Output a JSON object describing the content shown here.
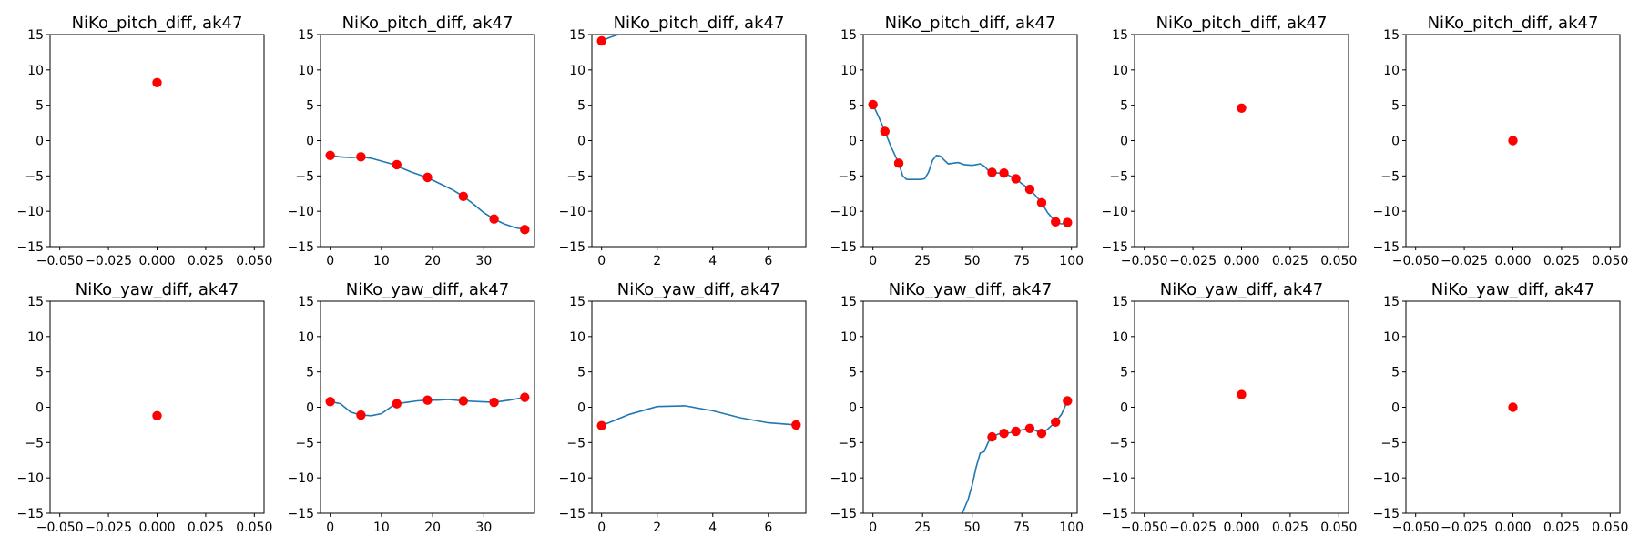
{
  "chart_data": [
    {
      "type": "scatter",
      "title": "NiKo_pitch_diff, ak47",
      "xticks": [
        "−0.050",
        "−0.025",
        "0.000",
        "0.025",
        "0.050"
      ],
      "yticks": [
        "15",
        "10",
        "5",
        "0",
        "−5",
        "−10",
        "−15"
      ],
      "xlim": [
        -0.055,
        0.055
      ],
      "ylim": [
        -15,
        15
      ],
      "points": [
        {
          "x": 0,
          "y": 8.2
        }
      ],
      "curve": []
    },
    {
      "type": "line",
      "title": "NiKo_pitch_diff, ak47",
      "xticks": [
        "0",
        "10",
        "20",
        "30"
      ],
      "yticks": [
        "15",
        "10",
        "5",
        "0",
        "−5",
        "−10",
        "−15"
      ],
      "xlim": [
        -1.9,
        39.9
      ],
      "ylim": [
        -15,
        15
      ],
      "points": [
        {
          "x": 0,
          "y": -2.1
        },
        {
          "x": 6,
          "y": -2.3
        },
        {
          "x": 13,
          "y": -3.4
        },
        {
          "x": 19,
          "y": -5.2
        },
        {
          "x": 26,
          "y": -7.9
        },
        {
          "x": 32,
          "y": -11.1
        },
        {
          "x": 38,
          "y": -12.6
        }
      ],
      "curve": [
        [
          0,
          -2.1
        ],
        [
          2,
          -2.3
        ],
        [
          4,
          -2.4
        ],
        [
          6,
          -2.3
        ],
        [
          8,
          -2.5
        ],
        [
          10,
          -2.9
        ],
        [
          12,
          -3.3
        ],
        [
          14,
          -3.9
        ],
        [
          16,
          -4.5
        ],
        [
          18,
          -5.0
        ],
        [
          20,
          -5.6
        ],
        [
          22,
          -6.3
        ],
        [
          24,
          -7.0
        ],
        [
          26,
          -7.9
        ],
        [
          28,
          -9.0
        ],
        [
          30,
          -10.2
        ],
        [
          32,
          -11.1
        ],
        [
          34,
          -11.8
        ],
        [
          36,
          -12.3
        ],
        [
          38,
          -12.6
        ]
      ]
    },
    {
      "type": "line",
      "title": "NiKo_pitch_diff, ak47",
      "xticks": [
        "0",
        "2",
        "4",
        "6"
      ],
      "yticks": [
        "15",
        "10",
        "5",
        "0",
        "−5",
        "−10",
        "−15"
      ],
      "xlim": [
        -0.35,
        7.35
      ],
      "ylim": [
        -15,
        15
      ],
      "points": [
        {
          "x": 0,
          "y": 14.1
        }
      ],
      "curve": [
        [
          0,
          14.1
        ],
        [
          0.3,
          14.6
        ],
        [
          0.6,
          15.0
        ],
        [
          0.9,
          15.4
        ],
        [
          1.2,
          15.8
        ]
      ]
    },
    {
      "type": "line",
      "title": "NiKo_pitch_diff, ak47",
      "xticks": [
        "0",
        "25",
        "50",
        "75",
        "100"
      ],
      "yticks": [
        "15",
        "10",
        "5",
        "0",
        "−5",
        "−10",
        "−15"
      ],
      "xlim": [
        -4.9,
        102.9
      ],
      "ylim": [
        -15,
        15
      ],
      "points": [
        {
          "x": 0,
          "y": 5.1
        },
        {
          "x": 6,
          "y": 1.3
        },
        {
          "x": 13,
          "y": -3.2
        },
        {
          "x": 60,
          "y": -4.5
        },
        {
          "x": 66,
          "y": -4.6
        },
        {
          "x": 72,
          "y": -5.4
        },
        {
          "x": 79,
          "y": -6.9
        },
        {
          "x": 85,
          "y": -8.8
        },
        {
          "x": 92,
          "y": -11.5
        },
        {
          "x": 98,
          "y": -11.6
        }
      ],
      "curve": [
        [
          0,
          5.1
        ],
        [
          3,
          3.3
        ],
        [
          6,
          1.3
        ],
        [
          9,
          -0.8
        ],
        [
          13,
          -3.2
        ],
        [
          15,
          -5.0
        ],
        [
          17,
          -5.5
        ],
        [
          20,
          -5.5
        ],
        [
          24,
          -5.5
        ],
        [
          26,
          -5.4
        ],
        [
          28,
          -4.5
        ],
        [
          30,
          -2.8
        ],
        [
          32,
          -2.1
        ],
        [
          34,
          -2.2
        ],
        [
          36,
          -2.8
        ],
        [
          38,
          -3.3
        ],
        [
          40,
          -3.2
        ],
        [
          43,
          -3.1
        ],
        [
          46,
          -3.4
        ],
        [
          50,
          -3.5
        ],
        [
          54,
          -3.3
        ],
        [
          56,
          -3.6
        ],
        [
          58,
          -4.2
        ],
        [
          60,
          -4.5
        ],
        [
          63,
          -4.6
        ],
        [
          66,
          -4.6
        ],
        [
          69,
          -5.0
        ],
        [
          72,
          -5.4
        ],
        [
          75,
          -6.1
        ],
        [
          79,
          -6.9
        ],
        [
          82,
          -7.8
        ],
        [
          85,
          -8.8
        ],
        [
          88,
          -10.2
        ],
        [
          92,
          -11.5
        ],
        [
          95,
          -11.8
        ],
        [
          98,
          -11.6
        ]
      ]
    },
    {
      "type": "scatter",
      "title": "NiKo_pitch_diff, ak47",
      "xticks": [
        "−0.050",
        "−0.025",
        "0.000",
        "0.025",
        "0.050"
      ],
      "yticks": [
        "15",
        "10",
        "5",
        "0",
        "−5",
        "−10",
        "−15"
      ],
      "xlim": [
        -0.055,
        0.055
      ],
      "ylim": [
        -15,
        15
      ],
      "points": [
        {
          "x": 0,
          "y": 4.6
        }
      ],
      "curve": []
    },
    {
      "type": "scatter",
      "title": "NiKo_pitch_diff, ak47",
      "xticks": [
        "−0.050",
        "−0.025",
        "0.000",
        "0.025",
        "0.050"
      ],
      "yticks": [
        "15",
        "10",
        "5",
        "0",
        "−5",
        "−10",
        "−15"
      ],
      "xlim": [
        -0.055,
        0.055
      ],
      "ylim": [
        -15,
        15
      ],
      "points": [
        {
          "x": 0,
          "y": 0.0
        }
      ],
      "curve": []
    },
    {
      "type": "scatter",
      "title": "NiKo_yaw_diff, ak47",
      "xticks": [
        "−0.050",
        "−0.025",
        "0.000",
        "0.025",
        "0.050"
      ],
      "yticks": [
        "15",
        "10",
        "5",
        "0",
        "−5",
        "−10",
        "−15"
      ],
      "xlim": [
        -0.055,
        0.055
      ],
      "ylim": [
        -15,
        15
      ],
      "points": [
        {
          "x": 0,
          "y": -1.2
        }
      ],
      "curve": []
    },
    {
      "type": "line",
      "title": "NiKo_yaw_diff, ak47",
      "xticks": [
        "0",
        "10",
        "20",
        "30"
      ],
      "yticks": [
        "15",
        "10",
        "5",
        "0",
        "−5",
        "−10",
        "−15"
      ],
      "xlim": [
        -1.9,
        39.9
      ],
      "ylim": [
        -15,
        15
      ],
      "points": [
        {
          "x": 0,
          "y": 0.8
        },
        {
          "x": 6,
          "y": -1.1
        },
        {
          "x": 13,
          "y": 0.5
        },
        {
          "x": 19,
          "y": 1.0
        },
        {
          "x": 26,
          "y": 0.9
        },
        {
          "x": 32,
          "y": 0.7
        },
        {
          "x": 38,
          "y": 1.4
        }
      ],
      "curve": [
        [
          0,
          0.8
        ],
        [
          2,
          0.5
        ],
        [
          4,
          -0.7
        ],
        [
          6,
          -1.1
        ],
        [
          8,
          -1.2
        ],
        [
          10,
          -0.9
        ],
        [
          12,
          0.1
        ],
        [
          13,
          0.5
        ],
        [
          15,
          0.7
        ],
        [
          17,
          0.9
        ],
        [
          19,
          1.0
        ],
        [
          21,
          1.0
        ],
        [
          23,
          1.1
        ],
        [
          26,
          0.9
        ],
        [
          29,
          0.8
        ],
        [
          32,
          0.7
        ],
        [
          35,
          1.0
        ],
        [
          38,
          1.4
        ]
      ]
    },
    {
      "type": "line",
      "title": "NiKo_yaw_diff, ak47",
      "xticks": [
        "0",
        "2",
        "4",
        "6"
      ],
      "yticks": [
        "15",
        "10",
        "5",
        "0",
        "−5",
        "−10",
        "−15"
      ],
      "xlim": [
        -0.35,
        7.35
      ],
      "ylim": [
        -15,
        15
      ],
      "points": [
        {
          "x": 0,
          "y": -2.6
        },
        {
          "x": 7,
          "y": -2.5
        }
      ],
      "curve": [
        [
          0,
          -2.6
        ],
        [
          1,
          -1.0
        ],
        [
          2,
          0.1
        ],
        [
          3,
          0.2
        ],
        [
          4,
          -0.5
        ],
        [
          5,
          -1.5
        ],
        [
          6,
          -2.2
        ],
        [
          7,
          -2.5
        ]
      ]
    },
    {
      "type": "line",
      "title": "NiKo_yaw_diff, ak47",
      "xticks": [
        "0",
        "25",
        "50",
        "75",
        "100"
      ],
      "yticks": [
        "15",
        "10",
        "5",
        "0",
        "−5",
        "−10",
        "−15"
      ],
      "xlim": [
        -4.9,
        102.9
      ],
      "ylim": [
        -15,
        15
      ],
      "points": [
        {
          "x": 60,
          "y": -4.2
        },
        {
          "x": 66,
          "y": -3.7
        },
        {
          "x": 72,
          "y": -3.4
        },
        {
          "x": 79,
          "y": -3.0
        },
        {
          "x": 85,
          "y": -3.7
        },
        {
          "x": 92,
          "y": -2.1
        },
        {
          "x": 98,
          "y": 0.9
        }
      ],
      "curve": [
        [
          43,
          -16
        ],
        [
          45,
          -15
        ],
        [
          48,
          -13
        ],
        [
          50,
          -11
        ],
        [
          52,
          -8.5
        ],
        [
          54,
          -6.5
        ],
        [
          56,
          -6.3
        ],
        [
          58,
          -5.0
        ],
        [
          60,
          -4.2
        ],
        [
          63,
          -3.8
        ],
        [
          66,
          -3.7
        ],
        [
          69,
          -3.6
        ],
        [
          72,
          -3.4
        ],
        [
          75,
          -3.2
        ],
        [
          79,
          -3.0
        ],
        [
          82,
          -3.3
        ],
        [
          85,
          -3.7
        ],
        [
          88,
          -3.1
        ],
        [
          92,
          -2.1
        ],
        [
          95,
          -1.0
        ],
        [
          98,
          0.9
        ]
      ]
    },
    {
      "type": "scatter",
      "title": "NiKo_yaw_diff, ak47",
      "xticks": [
        "−0.050",
        "−0.025",
        "0.000",
        "0.025",
        "0.050"
      ],
      "yticks": [
        "15",
        "10",
        "5",
        "0",
        "−5",
        "−10",
        "−15"
      ],
      "xlim": [
        -0.055,
        0.055
      ],
      "ylim": [
        -15,
        15
      ],
      "points": [
        {
          "x": 0,
          "y": 1.8
        }
      ],
      "curve": []
    },
    {
      "type": "scatter",
      "title": "NiKo_yaw_diff, ak47",
      "xticks": [
        "−0.050",
        "−0.025",
        "0.000",
        "0.025",
        "0.050"
      ],
      "yticks": [
        "15",
        "10",
        "5",
        "0",
        "−5",
        "−10",
        "−15"
      ],
      "xlim": [
        -0.055,
        0.055
      ],
      "ylim": [
        -15,
        15
      ],
      "points": [
        {
          "x": 0,
          "y": 0.0
        }
      ],
      "curve": []
    }
  ],
  "colors": {
    "line": "#1f77b4",
    "marker": "#ff0000"
  }
}
